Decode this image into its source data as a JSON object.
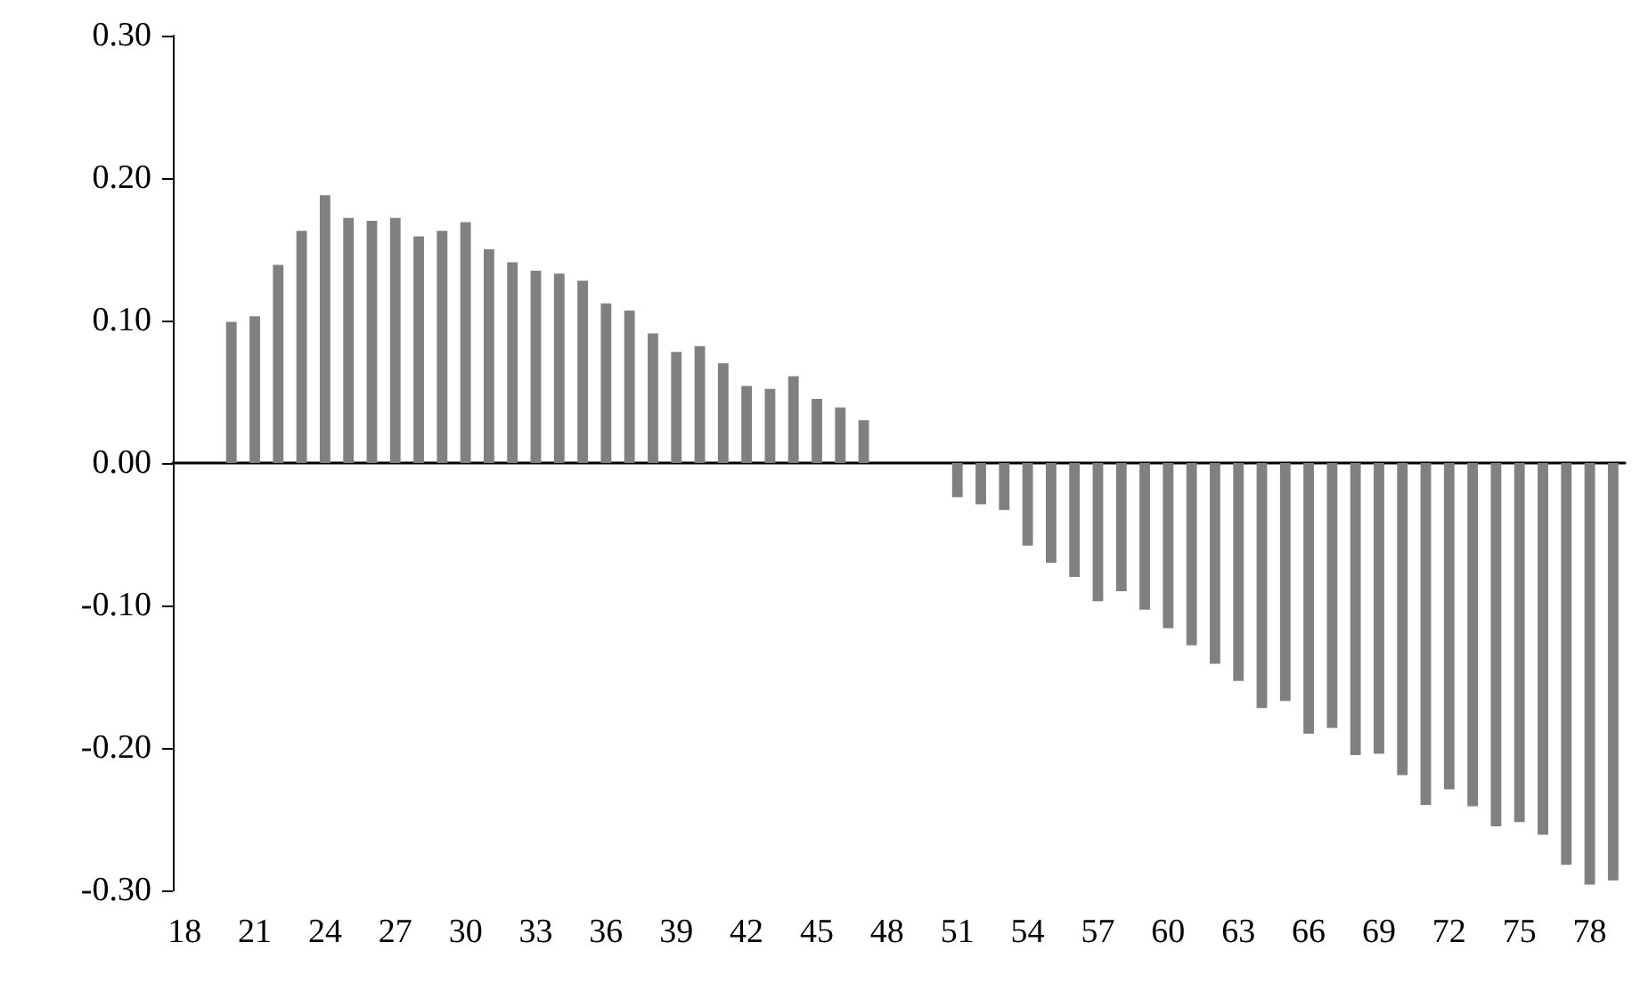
{
  "chart_data": {
    "type": "bar",
    "categories": [
      "18",
      null,
      null,
      "21",
      null,
      null,
      "24",
      null,
      null,
      "27",
      null,
      null,
      "30",
      null,
      null,
      "33",
      null,
      null,
      "36",
      null,
      null,
      "39",
      null,
      null,
      "42",
      null,
      null,
      "45",
      null,
      null,
      "48",
      null,
      null,
      "51",
      null,
      null,
      "54",
      null,
      null,
      "57",
      null,
      null,
      "60",
      null,
      null,
      "63",
      null,
      null,
      "66",
      null,
      null,
      "69",
      null,
      null,
      "72",
      null,
      null,
      "75",
      null,
      null,
      "78",
      null
    ],
    "series": [
      {
        "color": "#808080",
        "values": [
          null,
          null,
          0.099,
          0.103,
          0.139,
          0.163,
          0.188,
          0.172,
          0.17,
          0.172,
          0.159,
          0.163,
          0.169,
          0.15,
          0.141,
          0.135,
          0.133,
          0.128,
          0.112,
          0.107,
          0.091,
          0.078,
          0.082,
          0.07,
          0.054,
          0.052,
          0.061,
          0.045,
          0.039,
          0.03,
          null,
          null,
          null,
          -0.024,
          -0.029,
          -0.033,
          -0.058,
          -0.07,
          -0.08,
          -0.097,
          -0.09,
          -0.103,
          -0.116,
          -0.128,
          -0.141,
          -0.153,
          -0.172,
          -0.167,
          -0.19,
          -0.186,
          -0.205,
          -0.204,
          -0.219,
          -0.24,
          -0.229,
          -0.241,
          -0.255,
          -0.252,
          -0.261,
          -0.282,
          -0.296,
          -0.293
        ]
      }
    ],
    "ylim": [
      -0.3,
      0.3
    ],
    "yticks": [
      {
        "value": -0.3,
        "label": "-0.30"
      },
      {
        "value": -0.2,
        "label": "-0.20"
      },
      {
        "value": -0.1,
        "label": "-0.10"
      },
      {
        "value": 0,
        "label": "0.00"
      },
      {
        "value": 0.1,
        "label": "0.10"
      },
      {
        "value": 0.2,
        "label": "0.20"
      },
      {
        "value": 0.3,
        "label": "0.30"
      }
    ]
  }
}
